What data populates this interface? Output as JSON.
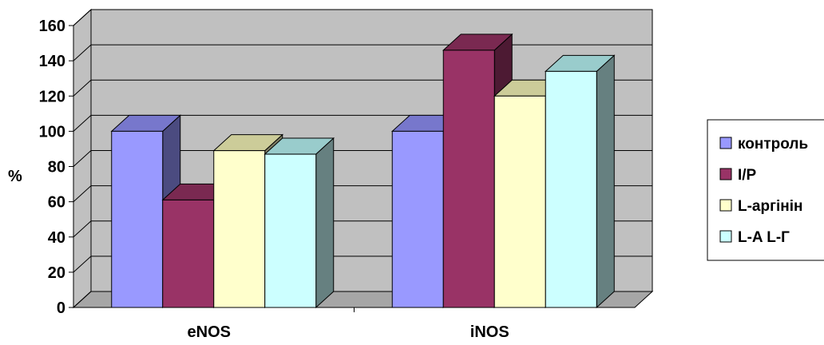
{
  "chart_data": {
    "type": "bar",
    "title": "",
    "xlabel": "",
    "ylabel": "%",
    "ylim": [
      0,
      160
    ],
    "yticks": [
      0,
      20,
      40,
      60,
      80,
      100,
      120,
      140,
      160
    ],
    "grid": true,
    "three_d": true,
    "legend_position": "right",
    "categories": [
      "eNOS",
      "iNOS"
    ],
    "series": [
      {
        "name": "контроль",
        "values": [
          100,
          100
        ],
        "color_front": "#9999ff",
        "color_top": "#7777cc",
        "color_side": "#4b4b80"
      },
      {
        "name": "I/P",
        "values": [
          61,
          146
        ],
        "color_front": "#993366",
        "color_top": "#7a2951",
        "color_side": "#4d1a33"
      },
      {
        "name": "L-аргінін",
        "values": [
          89,
          120
        ],
        "color_front": "#ffffcc",
        "color_top": "#cccc99",
        "color_side": "#808066"
      },
      {
        "name": "L-A L-Г",
        "values": [
          87,
          134
        ],
        "color_front": "#ccffff",
        "color_top": "#99cccc",
        "color_side": "#668080"
      }
    ],
    "colors": {
      "wall": "#c0c0c0",
      "floor": "#a6a6a6",
      "grid": "#000000"
    }
  }
}
